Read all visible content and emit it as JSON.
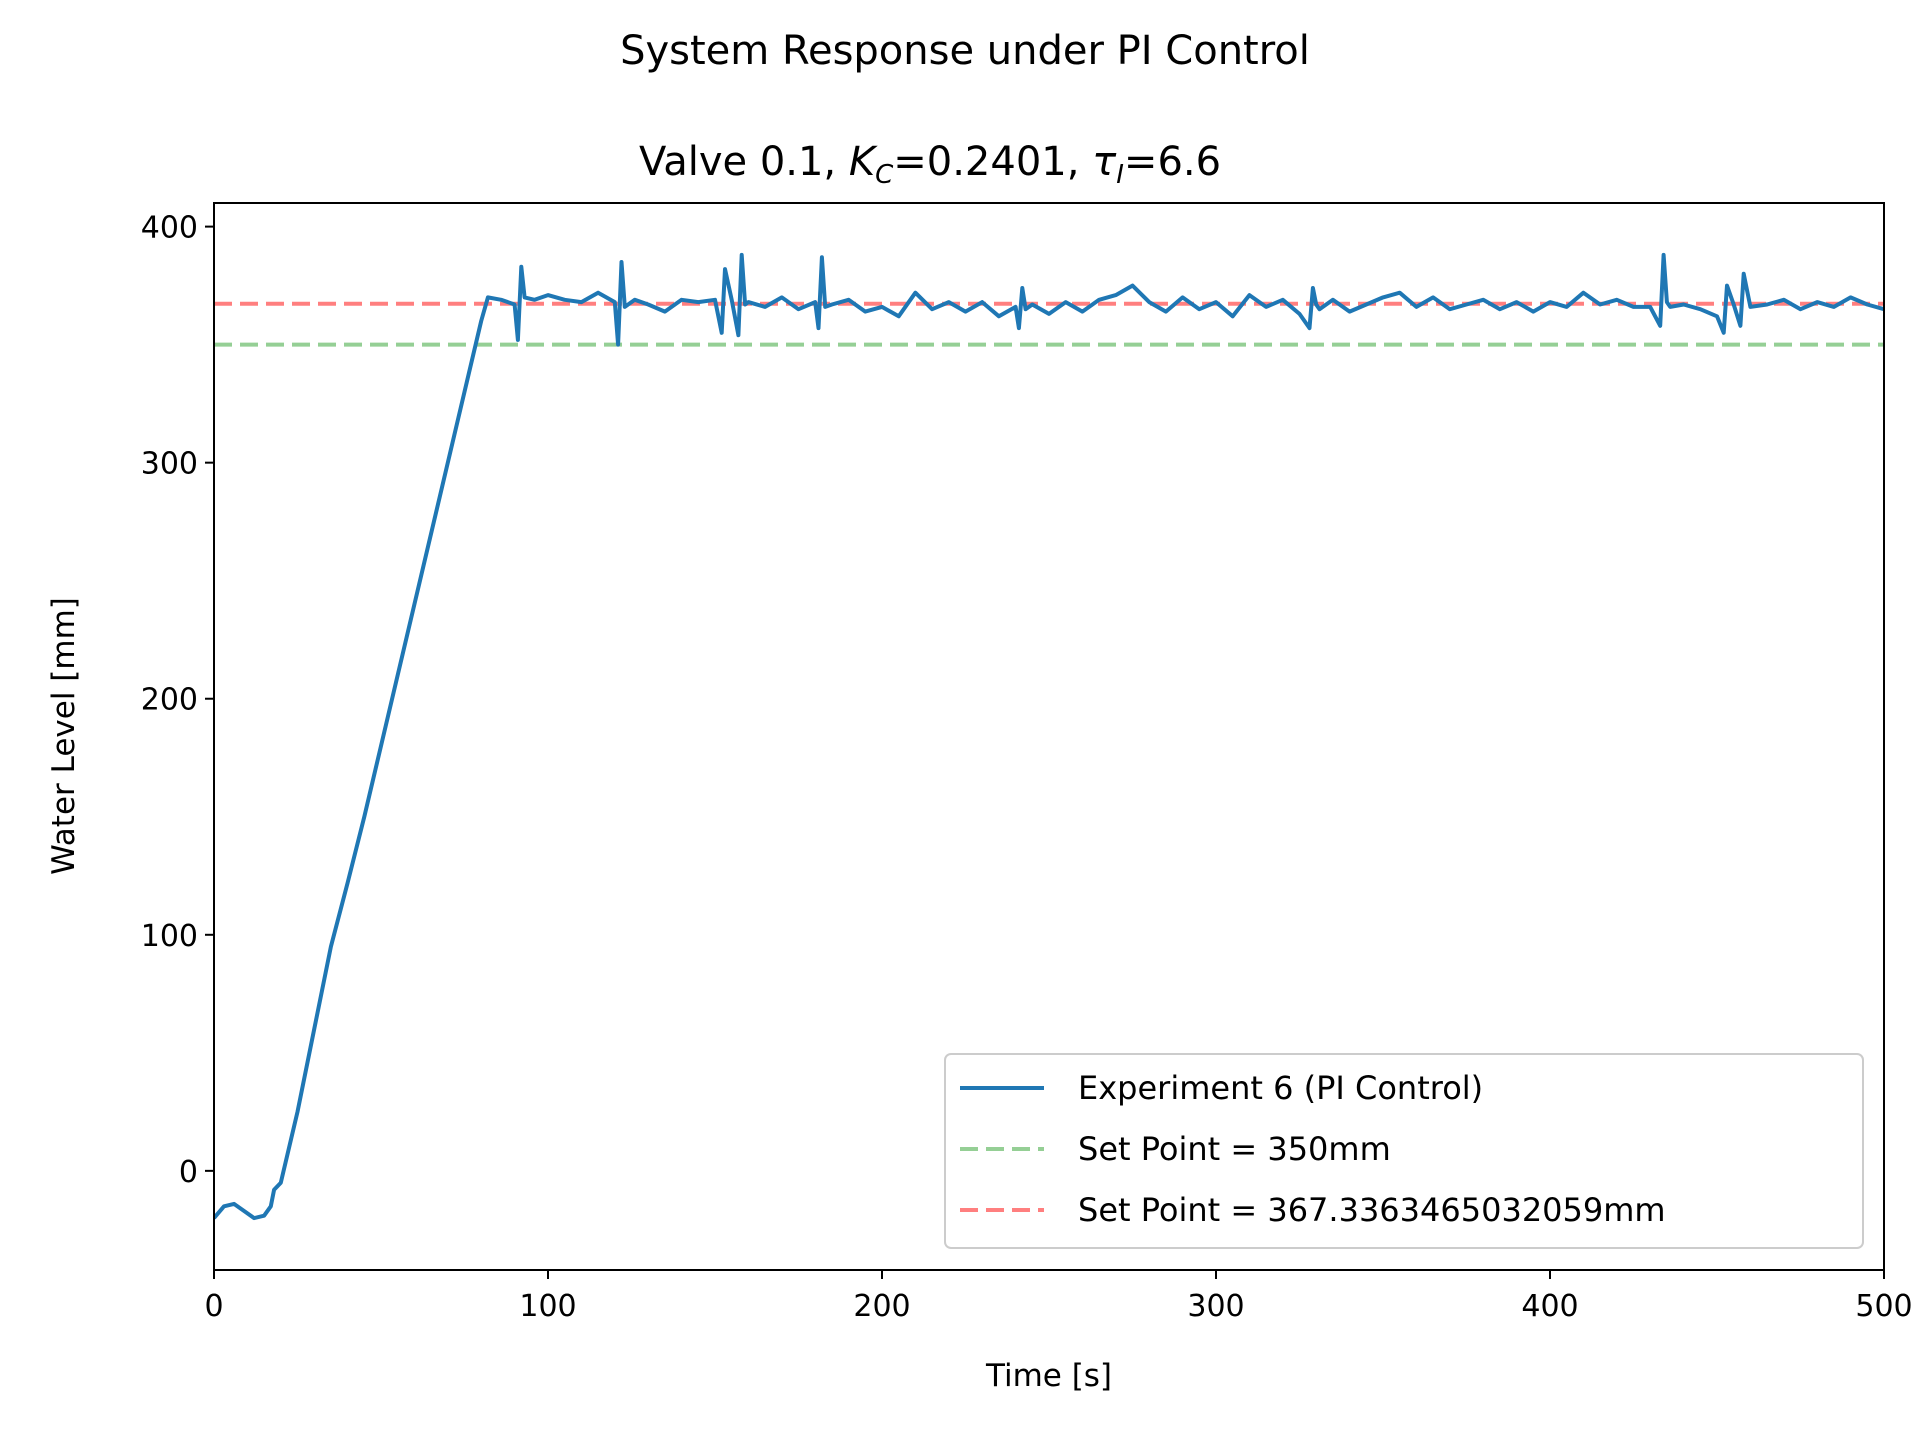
{
  "chart_data": {
    "type": "line",
    "suptitle": "System Response under PI Control",
    "title": {
      "prefix": "Valve 0.1, ",
      "kc_symbol": "K",
      "kc_sub": "C",
      "kc_value": "=0.2401, ",
      "tau_symbol": "τ",
      "tau_sub": "I",
      "tau_value": "=6.6"
    },
    "xlabel": "Time [s]",
    "ylabel": "Water Level [mm]",
    "xlim": [
      0,
      500
    ],
    "ylim": [
      -42,
      410
    ],
    "xticks": [
      0,
      100,
      200,
      300,
      400,
      500
    ],
    "yticks": [
      0,
      100,
      200,
      300,
      400
    ],
    "grid": false,
    "legend_position": "lower-right",
    "series": [
      {
        "name": "Experiment 6 (PI Control)",
        "color": "#1f77b4",
        "style": "solid",
        "x": [
          0,
          3,
          6,
          9,
          12,
          15,
          17,
          18,
          20,
          25,
          30,
          35,
          40,
          45,
          50,
          55,
          60,
          65,
          70,
          75,
          80,
          82,
          86,
          90,
          91,
          92,
          93,
          96,
          100,
          105,
          110,
          115,
          120,
          121,
          122,
          123,
          126,
          130,
          135,
          140,
          145,
          150,
          152,
          153,
          155,
          157,
          158,
          159,
          160,
          165,
          170,
          175,
          180,
          181,
          182,
          183,
          185,
          190,
          195,
          200,
          205,
          210,
          215,
          220,
          225,
          230,
          235,
          240,
          241,
          242,
          243,
          245,
          250,
          255,
          260,
          265,
          270,
          275,
          280,
          285,
          290,
          295,
          300,
          305,
          310,
          315,
          320,
          325,
          328,
          329,
          330,
          331,
          335,
          340,
          345,
          350,
          355,
          360,
          365,
          370,
          375,
          380,
          385,
          390,
          395,
          400,
          405,
          410,
          415,
          420,
          425,
          430,
          433,
          434,
          435,
          436,
          440,
          445,
          450,
          452,
          453,
          455,
          457,
          458,
          460,
          465,
          470,
          475,
          480,
          485,
          490,
          495,
          500
        ],
        "y": [
          -20,
          -15,
          -14,
          -17,
          -20,
          -19,
          -15,
          -8,
          -5,
          25,
          60,
          95,
          122,
          150,
          180,
          210,
          240,
          270,
          300,
          330,
          360,
          370,
          369,
          367,
          352,
          383,
          370,
          369,
          371,
          369,
          368,
          372,
          368,
          350,
          385,
          366,
          369,
          367,
          364,
          369,
          368,
          369,
          355,
          382,
          369,
          354,
          388,
          367,
          368,
          366,
          370,
          365,
          368,
          357,
          387,
          366,
          367,
          369,
          364,
          366,
          362,
          372,
          365,
          368,
          364,
          368,
          362,
          366,
          357,
          374,
          365,
          367,
          363,
          368,
          364,
          369,
          371,
          375,
          368,
          364,
          370,
          365,
          368,
          362,
          371,
          366,
          369,
          363,
          357,
          374,
          367,
          365,
          369,
          364,
          367,
          370,
          372,
          366,
          370,
          365,
          367,
          369,
          365,
          368,
          364,
          368,
          366,
          372,
          367,
          369,
          366,
          366,
          358,
          388,
          368,
          366,
          367,
          365,
          362,
          355,
          375,
          367,
          358,
          380,
          366,
          367,
          369,
          365,
          368,
          366,
          370,
          367,
          365
        ]
      },
      {
        "name": "Set Point = 350mm",
        "color": "#2ca02c",
        "style": "dashed",
        "value": 350
      },
      {
        "name": "Set Point = 367.3363465032059mm",
        "color": "#ff0000",
        "style": "dashed",
        "value": 367.3363465032059
      }
    ]
  }
}
